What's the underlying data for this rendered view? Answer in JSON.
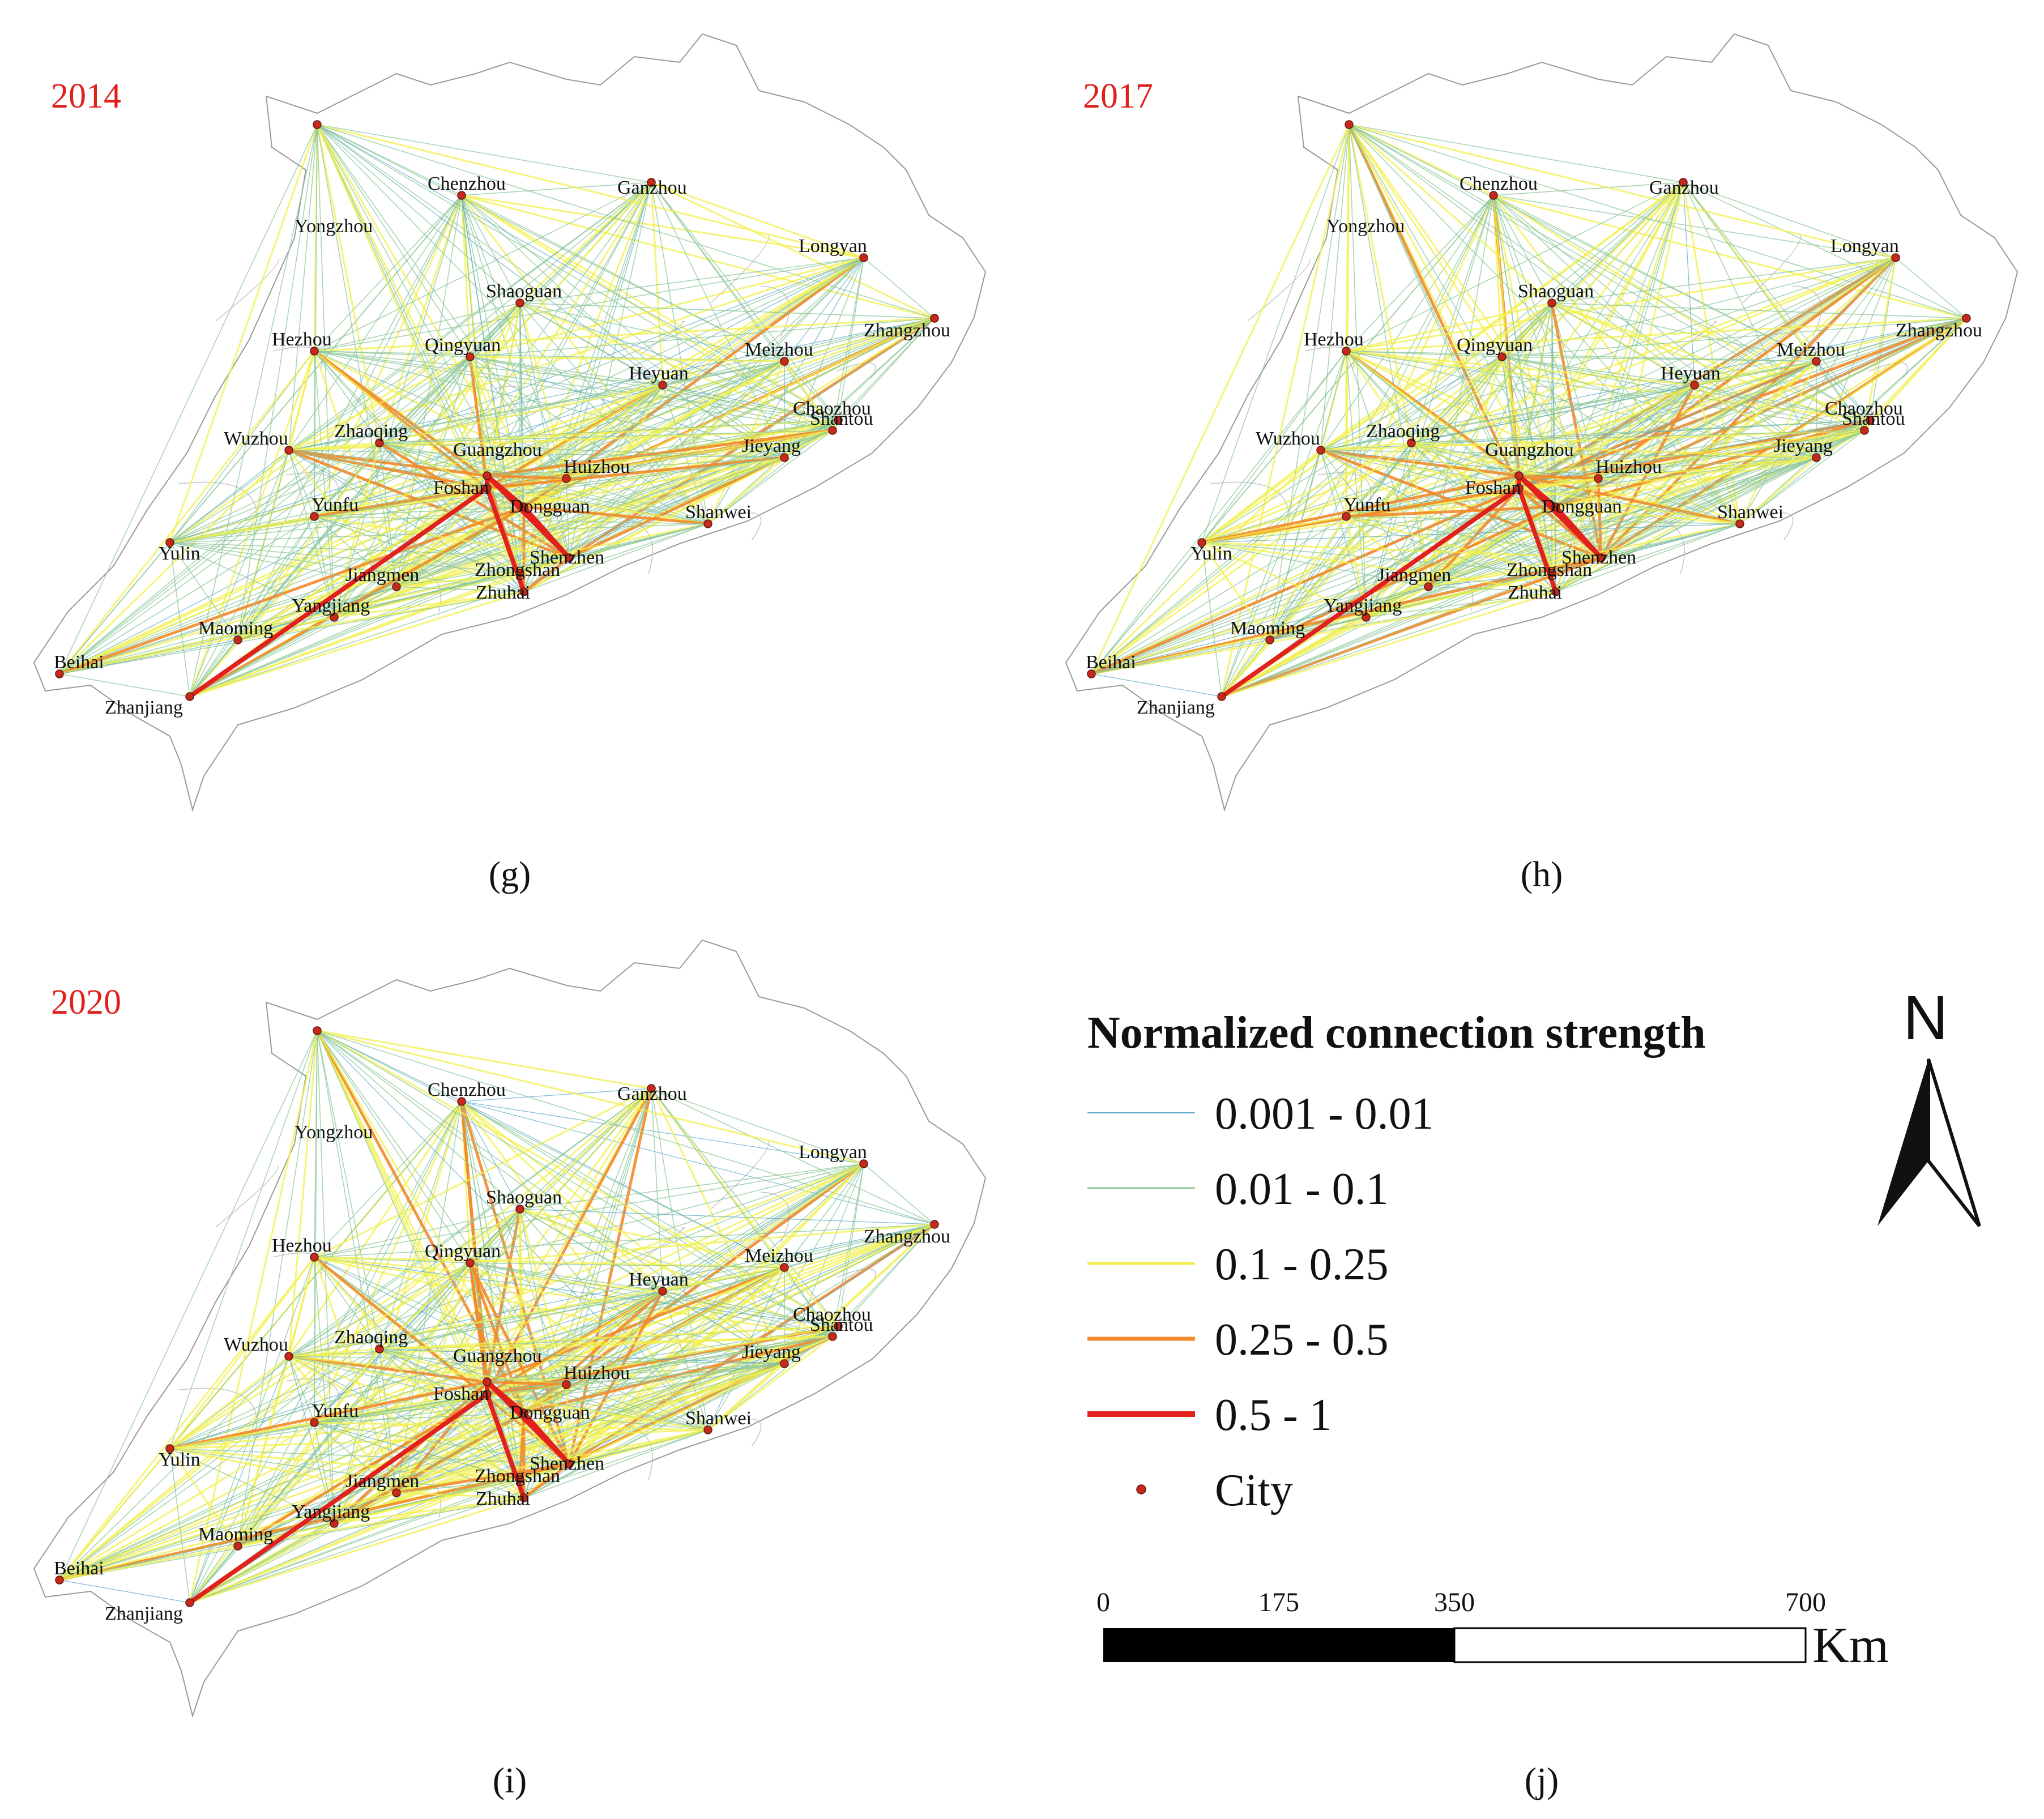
{
  "panels": [
    {
      "id": "g",
      "year": "2014",
      "letter": "(g)"
    },
    {
      "id": "h",
      "year": "2017",
      "letter": "(h)"
    },
    {
      "id": "i",
      "year": "2020",
      "letter": "(i)"
    }
  ],
  "legend_panel_letter": "(j)",
  "cities": [
    {
      "name": "Chenzhou"
    },
    {
      "name": "Ganzhou"
    },
    {
      "name": "Yongzhou"
    },
    {
      "name": "Longyan"
    },
    {
      "name": "Shaoguan"
    },
    {
      "name": "Zhangzhou"
    },
    {
      "name": "Hezhou"
    },
    {
      "name": "Qingyuan"
    },
    {
      "name": "Meizhou"
    },
    {
      "name": "Heyuan"
    },
    {
      "name": "Chaozhou"
    },
    {
      "name": "Shantou"
    },
    {
      "name": "Wuzhou"
    },
    {
      "name": "Zhaoqing"
    },
    {
      "name": "Guangzhou"
    },
    {
      "name": "Huizhou"
    },
    {
      "name": "Jieyang"
    },
    {
      "name": "Foshan"
    },
    {
      "name": "Dongguan"
    },
    {
      "name": "Shanwei"
    },
    {
      "name": "Yunfu"
    },
    {
      "name": "Shenzhen"
    },
    {
      "name": "Yulin"
    },
    {
      "name": "Zhongshan"
    },
    {
      "name": "Jiangmen"
    },
    {
      "name": "Zhuhai"
    },
    {
      "name": "Yangjiang"
    },
    {
      "name": "Maoming"
    },
    {
      "name": "Beihai"
    },
    {
      "name": "Zhanjiang"
    }
  ],
  "legend": {
    "title": "Normalized connection strength",
    "classes": [
      {
        "label": "0.001 - 0.01",
        "color": "#5aa8c8"
      },
      {
        "label": "0.01 - 0.1",
        "color": "#8cc79a"
      },
      {
        "label": "0.1 - 0.25",
        "color": "#f2f04a"
      },
      {
        "label": "0.25 - 0.5",
        "color": "#f28a2a"
      },
      {
        "label": "0.5 - 1",
        "color": "#e3211c"
      }
    ],
    "city_label": "City",
    "city_color": "#c8281c"
  },
  "scale_bar": {
    "ticks": [
      "0",
      "175",
      "350",
      "700"
    ],
    "unit": "Km"
  },
  "north_arrow": {
    "label": "N"
  }
}
